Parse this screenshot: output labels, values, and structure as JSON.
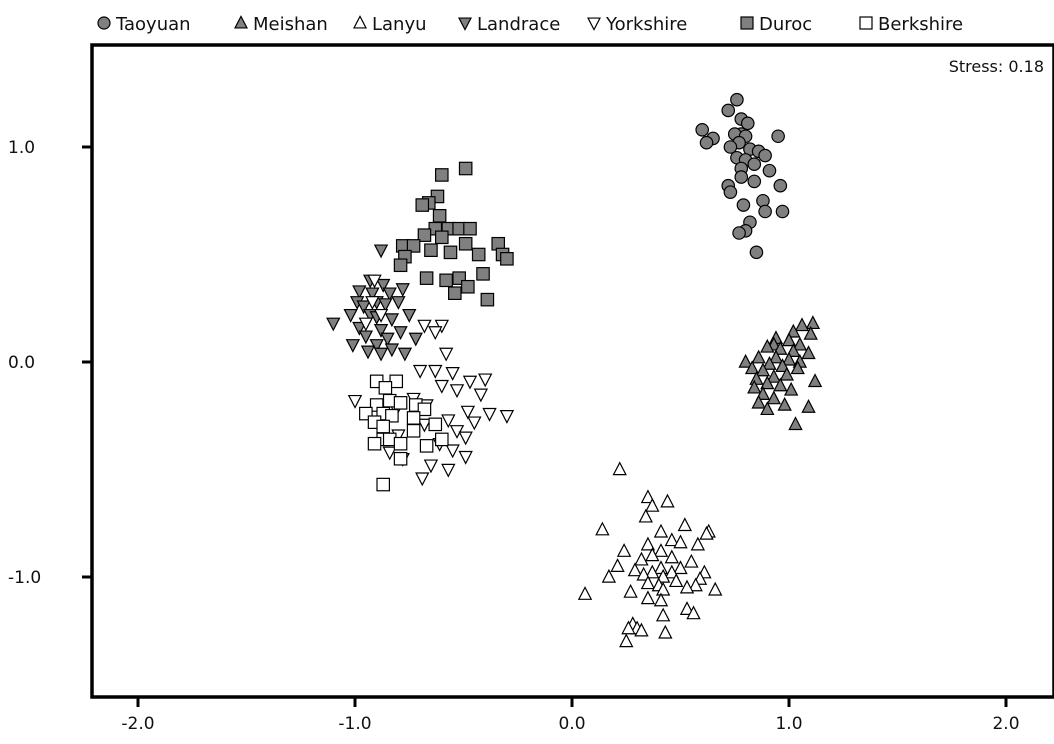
{
  "chart_data": {
    "type": "scatter",
    "title": "",
    "xlabel": "",
    "ylabel": "",
    "xlim": [
      -2.2,
      2.25
    ],
    "ylim": [
      -1.58,
      1.45
    ],
    "x_ticks": [
      -2.0,
      -1.0,
      0.0,
      1.0,
      2.0
    ],
    "x_tick_labels": [
      "-2.0",
      "-1.0",
      "0.0",
      "1.0",
      "2.0"
    ],
    "y_ticks": [
      1.0,
      0.0,
      -1.0
    ],
    "y_tick_labels": [
      "1.0",
      "0.0",
      "-1.0"
    ],
    "grid": false,
    "legend_position": "top",
    "annotation": "Stress: 0.18",
    "series": [
      {
        "name": "Taoyuan",
        "marker": "circle",
        "fill": "#808080",
        "points": [
          [
            0.76,
            1.22
          ],
          [
            0.72,
            1.17
          ],
          [
            0.78,
            1.13
          ],
          [
            0.81,
            1.11
          ],
          [
            0.6,
            1.08
          ],
          [
            0.78,
            1.06
          ],
          [
            0.75,
            1.06
          ],
          [
            0.8,
            1.05
          ],
          [
            0.65,
            1.04
          ],
          [
            0.95,
            1.05
          ],
          [
            0.62,
            1.02
          ],
          [
            0.77,
            1.02
          ],
          [
            0.73,
            1.0
          ],
          [
            0.82,
            0.99
          ],
          [
            0.86,
            0.98
          ],
          [
            0.89,
            0.96
          ],
          [
            0.76,
            0.95
          ],
          [
            0.8,
            0.94
          ],
          [
            0.84,
            0.92
          ],
          [
            0.78,
            0.9
          ],
          [
            0.91,
            0.89
          ],
          [
            0.78,
            0.86
          ],
          [
            0.84,
            0.84
          ],
          [
            0.96,
            0.82
          ],
          [
            0.72,
            0.82
          ],
          [
            0.73,
            0.79
          ],
          [
            0.88,
            0.75
          ],
          [
            0.79,
            0.73
          ],
          [
            0.89,
            0.7
          ],
          [
            0.97,
            0.7
          ],
          [
            0.82,
            0.65
          ],
          [
            0.8,
            0.61
          ],
          [
            0.77,
            0.6
          ],
          [
            0.85,
            0.51
          ]
        ]
      },
      {
        "name": "Meishan",
        "marker": "triangle-up",
        "fill": "#808080",
        "points": [
          [
            1.11,
            0.18
          ],
          [
            1.06,
            0.17
          ],
          [
            1.02,
            0.14
          ],
          [
            1.1,
            0.13
          ],
          [
            0.94,
            0.11
          ],
          [
            1.0,
            0.1
          ],
          [
            0.93,
            0.08
          ],
          [
            1.05,
            0.08
          ],
          [
            0.9,
            0.07
          ],
          [
            0.96,
            0.06
          ],
          [
            1.02,
            0.05
          ],
          [
            1.09,
            0.04
          ],
          [
            0.86,
            0.02
          ],
          [
            0.94,
            0.02
          ],
          [
            1.0,
            0.01
          ],
          [
            1.05,
            0.0
          ],
          [
            0.8,
            0.0
          ],
          [
            0.91,
            -0.01
          ],
          [
            0.97,
            -0.02
          ],
          [
            1.04,
            -0.03
          ],
          [
            0.83,
            -0.03
          ],
          [
            0.88,
            -0.04
          ],
          [
            0.99,
            -0.06
          ],
          [
            0.93,
            -0.07
          ],
          [
            0.85,
            -0.08
          ],
          [
            1.12,
            -0.09
          ],
          [
            0.9,
            -0.1
          ],
          [
            0.96,
            -0.11
          ],
          [
            0.84,
            -0.12
          ],
          [
            1.01,
            -0.13
          ],
          [
            0.88,
            -0.15
          ],
          [
            0.93,
            -0.17
          ],
          [
            0.86,
            -0.19
          ],
          [
            0.98,
            -0.2
          ],
          [
            1.09,
            -0.21
          ],
          [
            0.9,
            -0.22
          ],
          [
            1.03,
            -0.29
          ]
        ]
      },
      {
        "name": "Lanyu",
        "marker": "triangle-up",
        "fill": "#ffffff",
        "points": [
          [
            0.22,
            -0.5
          ],
          [
            0.35,
            -0.63
          ],
          [
            0.44,
            -0.65
          ],
          [
            0.37,
            -0.67
          ],
          [
            0.34,
            -0.72
          ],
          [
            0.52,
            -0.76
          ],
          [
            0.14,
            -0.78
          ],
          [
            0.41,
            -0.79
          ],
          [
            0.63,
            -0.79
          ],
          [
            0.62,
            -0.8
          ],
          [
            0.46,
            -0.83
          ],
          [
            0.5,
            -0.84
          ],
          [
            0.35,
            -0.85
          ],
          [
            0.58,
            -0.85
          ],
          [
            0.24,
            -0.88
          ],
          [
            0.41,
            -0.88
          ],
          [
            0.37,
            -0.9
          ],
          [
            0.46,
            -0.91
          ],
          [
            0.32,
            -0.92
          ],
          [
            0.55,
            -0.93
          ],
          [
            0.21,
            -0.95
          ],
          [
            0.5,
            -0.96
          ],
          [
            0.41,
            -0.96
          ],
          [
            0.29,
            -0.97
          ],
          [
            0.37,
            -0.98
          ],
          [
            0.46,
            -0.98
          ],
          [
            0.33,
            -0.99
          ],
          [
            0.61,
            -0.98
          ],
          [
            0.17,
            -1.0
          ],
          [
            0.42,
            -1.0
          ],
          [
            0.59,
            -1.01
          ],
          [
            0.48,
            -1.02
          ],
          [
            0.35,
            -1.03
          ],
          [
            0.4,
            -1.04
          ],
          [
            0.57,
            -1.04
          ],
          [
            0.53,
            -1.05
          ],
          [
            0.42,
            -1.06
          ],
          [
            0.66,
            -1.06
          ],
          [
            0.27,
            -1.07
          ],
          [
            0.06,
            -1.08
          ],
          [
            0.35,
            -1.1
          ],
          [
            0.41,
            -1.11
          ],
          [
            0.53,
            -1.15
          ],
          [
            0.56,
            -1.17
          ],
          [
            0.42,
            -1.18
          ],
          [
            0.28,
            -1.22
          ],
          [
            0.3,
            -1.24
          ],
          [
            0.26,
            -1.24
          ],
          [
            0.32,
            -1.25
          ],
          [
            0.43,
            -1.26
          ],
          [
            0.25,
            -1.3
          ]
        ]
      },
      {
        "name": "Landrace",
        "marker": "triangle-down",
        "fill": "#808080",
        "points": [
          [
            -0.88,
            0.52
          ],
          [
            -0.93,
            0.38
          ],
          [
            -0.87,
            0.36
          ],
          [
            -0.98,
            0.33
          ],
          [
            -0.92,
            0.32
          ],
          [
            -0.84,
            0.32
          ],
          [
            -0.78,
            0.34
          ],
          [
            -0.99,
            0.28
          ],
          [
            -0.9,
            0.28
          ],
          [
            -0.96,
            0.26
          ],
          [
            -0.8,
            0.28
          ],
          [
            -0.86,
            0.27
          ],
          [
            -1.02,
            0.22
          ],
          [
            -0.93,
            0.22
          ],
          [
            -0.75,
            0.22
          ],
          [
            -0.9,
            0.21
          ],
          [
            -0.83,
            0.2
          ],
          [
            -1.1,
            0.18
          ],
          [
            -0.98,
            0.16
          ],
          [
            -0.88,
            0.15
          ],
          [
            -0.79,
            0.14
          ],
          [
            -0.95,
            0.12
          ],
          [
            -0.85,
            0.11
          ],
          [
            -0.72,
            0.11
          ],
          [
            -1.01,
            0.08
          ],
          [
            -0.9,
            0.08
          ],
          [
            -0.83,
            0.06
          ],
          [
            -0.77,
            0.04
          ],
          [
            -0.94,
            0.05
          ],
          [
            -0.88,
            0.04
          ]
        ]
      },
      {
        "name": "Yorkshire",
        "marker": "triangle-down",
        "fill": "#ffffff",
        "points": [
          [
            -0.91,
            0.38
          ],
          [
            -0.68,
            0.17
          ],
          [
            -0.6,
            0.17
          ],
          [
            -0.63,
            0.14
          ],
          [
            -0.92,
            0.28
          ],
          [
            -0.88,
            0.22
          ],
          [
            -0.95,
            0.18
          ],
          [
            -0.58,
            0.04
          ],
          [
            -0.63,
            -0.04
          ],
          [
            -0.7,
            -0.04
          ],
          [
            -0.55,
            -0.05
          ],
          [
            -0.47,
            -0.09
          ],
          [
            -0.4,
            -0.08
          ],
          [
            -0.6,
            -0.11
          ],
          [
            -0.53,
            -0.13
          ],
          [
            -0.42,
            -0.15
          ],
          [
            -0.73,
            -0.17
          ],
          [
            -1.0,
            -0.18
          ],
          [
            -0.67,
            -0.2
          ],
          [
            -0.48,
            -0.23
          ],
          [
            -0.38,
            -0.24
          ],
          [
            -0.3,
            -0.25
          ],
          [
            -0.81,
            -0.22
          ],
          [
            -0.57,
            -0.27
          ],
          [
            -0.45,
            -0.28
          ],
          [
            -0.68,
            -0.29
          ],
          [
            -0.53,
            -0.32
          ],
          [
            -0.8,
            -0.34
          ],
          [
            -0.49,
            -0.35
          ],
          [
            -0.61,
            -0.38
          ],
          [
            -0.55,
            -0.41
          ],
          [
            -0.49,
            -0.44
          ],
          [
            -0.84,
            -0.42
          ],
          [
            -0.78,
            -0.45
          ],
          [
            -0.65,
            -0.48
          ],
          [
            -0.57,
            -0.5
          ],
          [
            -0.69,
            -0.54
          ]
        ]
      },
      {
        "name": "Duroc",
        "marker": "square",
        "fill": "#808080",
        "points": [
          [
            -0.49,
            0.9
          ],
          [
            -0.6,
            0.87
          ],
          [
            -0.62,
            0.77
          ],
          [
            -0.66,
            0.74
          ],
          [
            -0.69,
            0.73
          ],
          [
            -0.61,
            0.68
          ],
          [
            -0.63,
            0.62
          ],
          [
            -0.57,
            0.62
          ],
          [
            -0.52,
            0.62
          ],
          [
            -0.47,
            0.62
          ],
          [
            -0.68,
            0.59
          ],
          [
            -0.6,
            0.58
          ],
          [
            -0.49,
            0.55
          ],
          [
            -0.34,
            0.55
          ],
          [
            -0.78,
            0.54
          ],
          [
            -0.73,
            0.54
          ],
          [
            -0.65,
            0.52
          ],
          [
            -0.56,
            0.51
          ],
          [
            -0.43,
            0.5
          ],
          [
            -0.32,
            0.5
          ],
          [
            -0.77,
            0.49
          ],
          [
            -0.3,
            0.48
          ],
          [
            -0.79,
            0.45
          ],
          [
            -0.67,
            0.39
          ],
          [
            -0.58,
            0.38
          ],
          [
            -0.52,
            0.39
          ],
          [
            -0.41,
            0.41
          ],
          [
            -0.48,
            0.35
          ],
          [
            -0.54,
            0.32
          ],
          [
            -0.39,
            0.29
          ]
        ]
      },
      {
        "name": "Berkshire",
        "marker": "square",
        "fill": "#ffffff",
        "points": [
          [
            -0.9,
            -0.09
          ],
          [
            -0.81,
            -0.09
          ],
          [
            -0.86,
            -0.12
          ],
          [
            -0.84,
            -0.18
          ],
          [
            -0.9,
            -0.2
          ],
          [
            -0.72,
            -0.2
          ],
          [
            -0.79,
            -0.19
          ],
          [
            -0.68,
            -0.22
          ],
          [
            -0.95,
            -0.24
          ],
          [
            -0.87,
            -0.24
          ],
          [
            -0.83,
            -0.25
          ],
          [
            -0.73,
            -0.26
          ],
          [
            -0.91,
            -0.28
          ],
          [
            -0.87,
            -0.3
          ],
          [
            -0.63,
            -0.29
          ],
          [
            -0.73,
            -0.32
          ],
          [
            -0.87,
            -0.36
          ],
          [
            -0.84,
            -0.36
          ],
          [
            -0.6,
            -0.36
          ],
          [
            -0.91,
            -0.38
          ],
          [
            -0.79,
            -0.38
          ],
          [
            -0.67,
            -0.39
          ],
          [
            -0.79,
            -0.45
          ],
          [
            -0.87,
            -0.57
          ]
        ]
      }
    ]
  }
}
